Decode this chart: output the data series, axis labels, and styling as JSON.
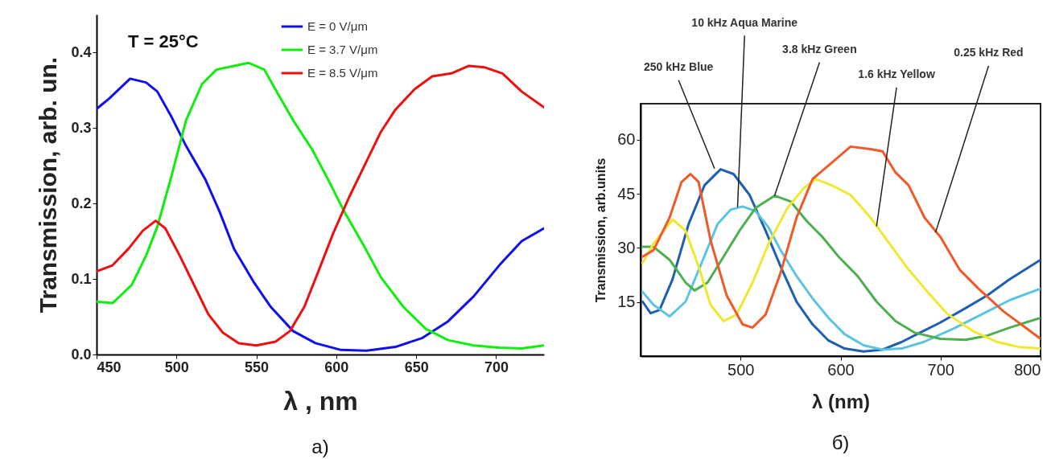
{
  "chart_data": [
    {
      "type": "line",
      "title": "а)",
      "xlabel": "λ , nm",
      "ylabel": "Transmission, arb. un.",
      "xlim": [
        450,
        730
      ],
      "ylim": [
        0,
        0.45
      ],
      "xticks": [
        450,
        500,
        550,
        600,
        650,
        700
      ],
      "yticks": [
        {
          "value": 0,
          "label": "0.0"
        },
        0.1,
        0.2,
        0.3,
        0.4
      ],
      "legend": "top",
      "grid": false,
      "annotations": [
        "T = 25°C"
      ],
      "series": [
        {
          "name": "E = 0 V/μm",
          "color": "#1010ee",
          "x": [
            450,
            458,
            471,
            481,
            488,
            497,
            506,
            518,
            527,
            536,
            548,
            559,
            573,
            587,
            603,
            619,
            637,
            654,
            670,
            686,
            702,
            716,
            730
          ],
          "values": [
            0.325,
            0.339,
            0.365,
            0.36,
            0.348,
            0.314,
            0.276,
            0.232,
            0.189,
            0.14,
            0.097,
            0.063,
            0.031,
            0.015,
            0.006,
            0.005,
            0.01,
            0.022,
            0.044,
            0.077,
            0.118,
            0.15,
            0.167
          ]
        },
        {
          "name": "E = 3.7 V/μm",
          "color": "#10ee10",
          "x": [
            450,
            460,
            472,
            481,
            488,
            497,
            506,
            516,
            525,
            536,
            545,
            555,
            564,
            573,
            585,
            596,
            605,
            617,
            628,
            642,
            656,
            670,
            686,
            702,
            716,
            730
          ],
          "values": [
            0.07,
            0.068,
            0.092,
            0.131,
            0.169,
            0.237,
            0.31,
            0.358,
            0.377,
            0.382,
            0.386,
            0.377,
            0.343,
            0.31,
            0.271,
            0.227,
            0.189,
            0.145,
            0.102,
            0.063,
            0.034,
            0.019,
            0.012,
            0.009,
            0.008,
            0.012
          ]
        },
        {
          "name": "E = 8.5 V/μm",
          "color": "#ee1010",
          "x": [
            450,
            460,
            470,
            479,
            487,
            493,
            502,
            511,
            520,
            529,
            539,
            550,
            562,
            571,
            580,
            589,
            598,
            608,
            619,
            628,
            637,
            649,
            660,
            672,
            683,
            693,
            704,
            716,
            730
          ],
          "values": [
            0.11,
            0.118,
            0.14,
            0.164,
            0.177,
            0.167,
            0.131,
            0.092,
            0.053,
            0.029,
            0.015,
            0.012,
            0.017,
            0.031,
            0.063,
            0.111,
            0.16,
            0.208,
            0.256,
            0.295,
            0.324,
            0.351,
            0.368,
            0.372,
            0.382,
            0.38,
            0.372,
            0.348,
            0.327
          ]
        }
      ]
    },
    {
      "type": "line",
      "title": "б)",
      "xlabel": "λ (nm)",
      "ylabel": "Transmission, arb.units",
      "xlim": [
        400,
        800
      ],
      "ylim": [
        0,
        70
      ],
      "xticks": [
        500,
        600,
        700,
        800
      ],
      "yticks": [
        15,
        30,
        45,
        60
      ],
      "grid": false,
      "annotations": [
        {
          "text": "250 kHz Blue",
          "x": 474,
          "y": 52
        },
        {
          "text": "10 kHz Aqua Marine",
          "x": 497,
          "y": 41.3
        },
        {
          "text": "3.8 kHz Green",
          "x": 534,
          "y": 44.5
        },
        {
          "text": "1.6 kHz Yellow",
          "x": 636,
          "y": 36
        },
        {
          "text": "0.25 kHz Red",
          "x": 695,
          "y": 34.3
        }
      ],
      "series": [
        {
          "color": "#1f5fb0",
          "x": [
            402,
            410,
            419,
            432,
            448,
            464,
            480,
            493,
            509,
            525,
            540,
            556,
            572,
            588,
            604,
            623,
            642,
            661,
            683,
            699,
            725,
            747,
            769,
            800
          ],
          "values": [
            15.1,
            11.9,
            12.8,
            21.3,
            36.6,
            47.4,
            51.8,
            50.5,
            44.7,
            34.8,
            24.9,
            15.1,
            8.8,
            4.3,
            2.1,
            1.3,
            1.8,
            3.9,
            7.0,
            9.2,
            13.3,
            16.9,
            21.3,
            26.7
          ]
        },
        {
          "color": "#5bc4e0",
          "x": [
            402,
            413,
            429,
            445,
            461,
            477,
            490,
            502,
            515,
            528,
            540,
            556,
            572,
            588,
            604,
            623,
            642,
            661,
            683,
            715,
            747,
            769,
            800
          ],
          "values": [
            17.8,
            14.2,
            11.0,
            15.1,
            25.8,
            36.6,
            40.6,
            41.5,
            40.2,
            35.7,
            29.4,
            22.2,
            16.0,
            10.6,
            6.1,
            3.0,
            1.8,
            2.1,
            3.9,
            7.9,
            12.4,
            15.5,
            18.7
          ]
        },
        {
          "color": "#4caf50",
          "x": [
            402,
            413,
            429,
            445,
            454,
            467,
            483,
            499,
            515,
            534,
            550,
            566,
            582,
            598,
            617,
            636,
            655,
            674,
            700,
            725,
            747,
            769,
            800
          ],
          "values": [
            30.3,
            30.3,
            26.7,
            20.4,
            18.2,
            20.4,
            27.6,
            34.8,
            41.1,
            44.5,
            42.9,
            37.5,
            33.0,
            27.6,
            22.2,
            15.1,
            9.7,
            6.5,
            4.8,
            4.5,
            5.7,
            7.9,
            10.6
          ]
        },
        {
          "color": "#f0e830",
          "x": [
            402,
            413,
            432,
            445,
            458,
            470,
            483,
            496,
            512,
            528,
            547,
            563,
            575,
            591,
            610,
            630,
            649,
            668,
            687,
            706,
            732,
            757,
            779,
            800
          ],
          "values": [
            25.8,
            31.2,
            37.9,
            34.8,
            24.9,
            14.2,
            9.7,
            11.5,
            20.4,
            31.2,
            41.1,
            46.5,
            49.1,
            47.4,
            44.7,
            38.4,
            31.2,
            24.0,
            17.8,
            11.9,
            7.0,
            3.9,
            2.5,
            2.1
          ]
        },
        {
          "color": "#f05a2a",
          "x": [
            402,
            413,
            429,
            441,
            450,
            458,
            470,
            486,
            502,
            512,
            525,
            540,
            556,
            572,
            591,
            610,
            630,
            642,
            655,
            668,
            684,
            700,
            719,
            738,
            763,
            800
          ],
          "values": [
            27.6,
            29.4,
            38.4,
            48.3,
            50.5,
            48.3,
            32.1,
            16.9,
            8.8,
            7.9,
            11.5,
            23.1,
            38.4,
            49.1,
            53.6,
            58.1,
            57.4,
            56.8,
            50.9,
            47.4,
            38.4,
            33.0,
            24.0,
            18.7,
            12.4,
            4.8
          ]
        }
      ]
    }
  ]
}
